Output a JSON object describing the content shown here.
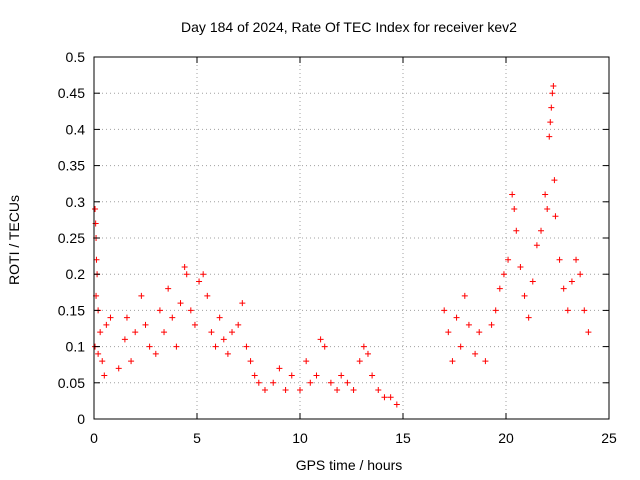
{
  "chart_data": {
    "type": "scatter",
    "title": "Day 184 of 2024, Rate Of TEC Index for receiver kev2",
    "xlabel": "GPS time / hours",
    "ylabel": "ROTI / TECUs",
    "xlim": [
      0,
      25
    ],
    "ylim": [
      0,
      0.5
    ],
    "xticks": [
      0,
      5,
      10,
      15,
      20,
      25
    ],
    "xtick_labels": [
      "0",
      "5",
      "10",
      "15",
      "20",
      "25"
    ],
    "yticks": [
      0,
      0.05,
      0.1,
      0.15,
      0.2,
      0.25,
      0.3,
      0.35,
      0.4,
      0.45,
      0.5
    ],
    "ytick_labels": [
      "0",
      "0.05",
      "0.1",
      "0.15",
      "0.2",
      "0.25",
      "0.3",
      "0.35",
      "0.4",
      "0.45",
      "0.5"
    ],
    "grid": true,
    "marker": "+",
    "color": "#ff0000",
    "series": [
      {
        "name": "ROTI",
        "points": [
          [
            0.05,
            0.29
          ],
          [
            0.08,
            0.27
          ],
          [
            0.1,
            0.25
          ],
          [
            0.12,
            0.22
          ],
          [
            0.15,
            0.2
          ],
          [
            0.1,
            0.17
          ],
          [
            0.2,
            0.15
          ],
          [
            0.3,
            0.12
          ],
          [
            0.05,
            0.1
          ],
          [
            0.2,
            0.09
          ],
          [
            0.4,
            0.08
          ],
          [
            0.6,
            0.13
          ],
          [
            0.8,
            0.14
          ],
          [
            0.5,
            0.06
          ],
          [
            1.2,
            0.07
          ],
          [
            1.5,
            0.11
          ],
          [
            1.6,
            0.14
          ],
          [
            1.8,
            0.08
          ],
          [
            2.0,
            0.12
          ],
          [
            2.3,
            0.17
          ],
          [
            2.5,
            0.13
          ],
          [
            2.7,
            0.1
          ],
          [
            3.0,
            0.09
          ],
          [
            3.2,
            0.15
          ],
          [
            3.4,
            0.12
          ],
          [
            3.6,
            0.18
          ],
          [
            3.8,
            0.14
          ],
          [
            4.0,
            0.1
          ],
          [
            4.2,
            0.16
          ],
          [
            4.4,
            0.21
          ],
          [
            4.5,
            0.2
          ],
          [
            4.7,
            0.15
          ],
          [
            4.9,
            0.13
          ],
          [
            5.1,
            0.19
          ],
          [
            5.3,
            0.2
          ],
          [
            5.5,
            0.17
          ],
          [
            5.7,
            0.12
          ],
          [
            5.9,
            0.1
          ],
          [
            6.1,
            0.14
          ],
          [
            6.3,
            0.11
          ],
          [
            6.5,
            0.09
          ],
          [
            6.7,
            0.12
          ],
          [
            7.0,
            0.13
          ],
          [
            7.2,
            0.16
          ],
          [
            7.4,
            0.1
          ],
          [
            7.6,
            0.08
          ],
          [
            7.8,
            0.06
          ],
          [
            8.0,
            0.05
          ],
          [
            8.3,
            0.04
          ],
          [
            8.7,
            0.05
          ],
          [
            9.0,
            0.07
          ],
          [
            9.3,
            0.04
          ],
          [
            9.6,
            0.06
          ],
          [
            10.0,
            0.04
          ],
          [
            10.3,
            0.08
          ],
          [
            10.5,
            0.05
          ],
          [
            10.8,
            0.06
          ],
          [
            11.0,
            0.11
          ],
          [
            11.2,
            0.1
          ],
          [
            11.5,
            0.05
          ],
          [
            11.8,
            0.04
          ],
          [
            12.0,
            0.06
          ],
          [
            12.3,
            0.05
          ],
          [
            12.6,
            0.04
          ],
          [
            12.9,
            0.08
          ],
          [
            13.1,
            0.1
          ],
          [
            13.3,
            0.09
          ],
          [
            13.5,
            0.06
          ],
          [
            13.8,
            0.04
          ],
          [
            14.1,
            0.03
          ],
          [
            14.4,
            0.03
          ],
          [
            14.7,
            0.02
          ],
          [
            17.0,
            0.15
          ],
          [
            17.2,
            0.12
          ],
          [
            17.4,
            0.08
          ],
          [
            17.6,
            0.14
          ],
          [
            17.8,
            0.1
          ],
          [
            18.0,
            0.17
          ],
          [
            18.2,
            0.13
          ],
          [
            18.5,
            0.09
          ],
          [
            18.7,
            0.12
          ],
          [
            19.0,
            0.08
          ],
          [
            19.3,
            0.13
          ],
          [
            19.5,
            0.15
          ],
          [
            19.7,
            0.18
          ],
          [
            19.9,
            0.2
          ],
          [
            20.1,
            0.22
          ],
          [
            20.3,
            0.31
          ],
          [
            20.4,
            0.29
          ],
          [
            20.5,
            0.26
          ],
          [
            20.7,
            0.21
          ],
          [
            20.9,
            0.17
          ],
          [
            21.1,
            0.14
          ],
          [
            21.3,
            0.19
          ],
          [
            21.5,
            0.24
          ],
          [
            21.7,
            0.26
          ],
          [
            21.9,
            0.31
          ],
          [
            22.0,
            0.29
          ],
          [
            22.1,
            0.39
          ],
          [
            22.15,
            0.41
          ],
          [
            22.2,
            0.43
          ],
          [
            22.25,
            0.45
          ],
          [
            22.3,
            0.46
          ],
          [
            22.35,
            0.33
          ],
          [
            22.4,
            0.28
          ],
          [
            22.6,
            0.22
          ],
          [
            22.8,
            0.18
          ],
          [
            23.0,
            0.15
          ],
          [
            23.2,
            0.19
          ],
          [
            23.4,
            0.22
          ],
          [
            23.6,
            0.2
          ],
          [
            23.8,
            0.15
          ],
          [
            24.0,
            0.12
          ]
        ]
      }
    ]
  }
}
